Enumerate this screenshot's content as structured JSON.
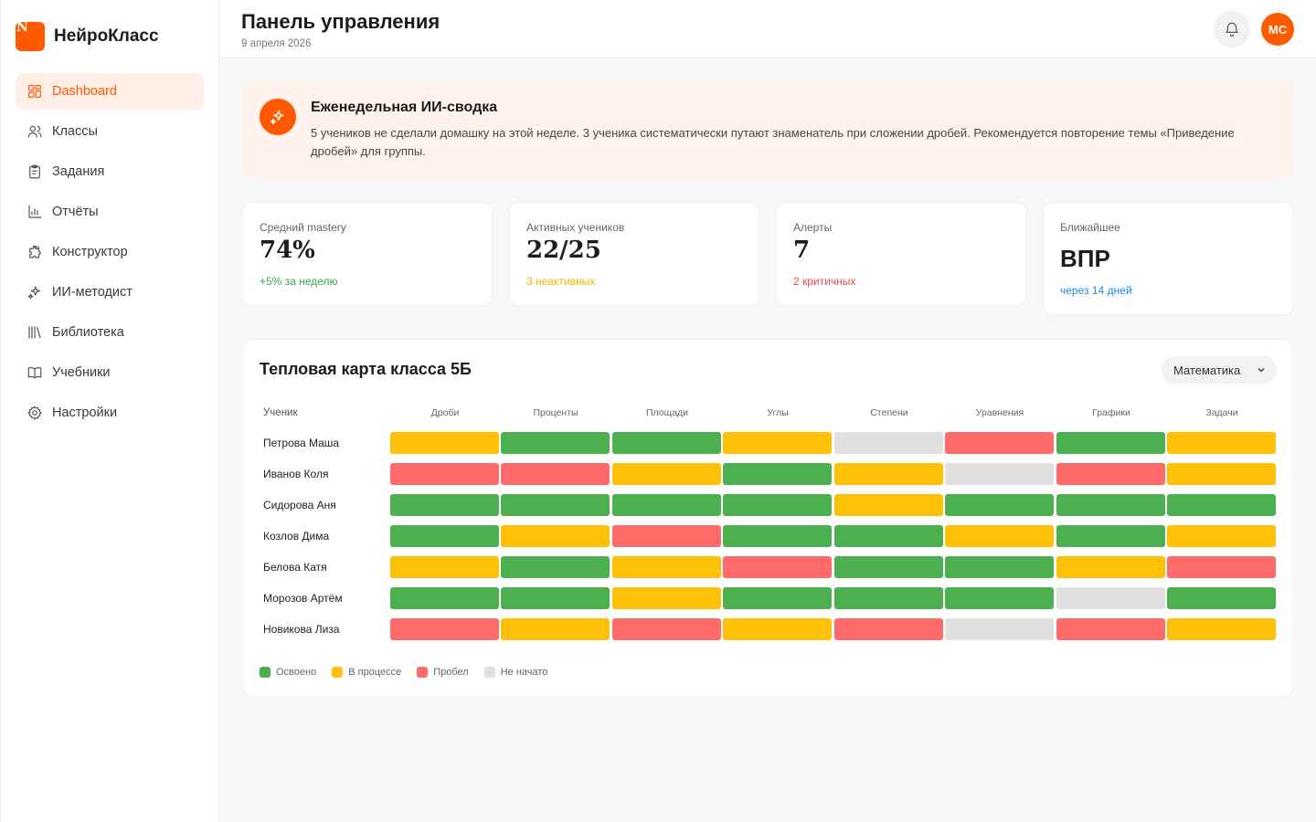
{
  "brand": {
    "name": "НейроКласс",
    "logo_letter": "N"
  },
  "nav": [
    {
      "label": "Dashboard",
      "icon": "dashboard-icon",
      "active": true
    },
    {
      "label": "Классы",
      "icon": "users-icon",
      "active": false
    },
    {
      "label": "Задания",
      "icon": "clipboard-icon",
      "active": false
    },
    {
      "label": "Отчёты",
      "icon": "chart-icon",
      "active": false
    },
    {
      "label": "Конструктор",
      "icon": "puzzle-icon",
      "active": false
    },
    {
      "label": "ИИ-методист",
      "icon": "sparkles-icon",
      "active": false
    },
    {
      "label": "Библиотека",
      "icon": "library-icon",
      "active": false
    },
    {
      "label": "Учебники",
      "icon": "book-icon",
      "active": false
    },
    {
      "label": "Настройки",
      "icon": "gear-icon",
      "active": false
    }
  ],
  "header": {
    "title": "Панель управления",
    "date": "9 апреля 2026",
    "avatar_initials": "МС",
    "notification_icon": "bell-icon"
  },
  "ai_summary": {
    "title": "Еженедельная ИИ-сводка",
    "text": "5 учеников не сделали домашку на этой неделе. 3 ученика систематически путают знаменатель при сложении дробей. Рекомендуется повторение темы «Приведение дробей» для группы.",
    "icon": "sparkles-icon"
  },
  "stats": [
    {
      "label": "Средний mastery",
      "value": "74%",
      "sub": "+5% за неделю",
      "sub_color": "#3aa64a"
    },
    {
      "label": "Активных учеников",
      "value": "22/25",
      "sub": "3 неактивных",
      "sub_color": "#f0b400"
    },
    {
      "label": "Алерты",
      "value": "7",
      "sub": "2 критичных",
      "sub_color": "#ef4b4b"
    },
    {
      "label": "Ближайшее",
      "value": "ВПР",
      "sub": "через 14 дней",
      "sub_color": "#1e88e5"
    }
  ],
  "heatmap": {
    "title": "Тепловая карта класса 5Б",
    "subject": "Математика",
    "student_header": "Ученик",
    "topics": [
      "Дроби",
      "Проценты",
      "Площади",
      "Углы",
      "Степени",
      "Уравнения",
      "Графики",
      "Задачи"
    ],
    "students": [
      {
        "name": "Петрова Маша",
        "statuses": [
          "progress",
          "mastered",
          "mastered",
          "progress",
          "none",
          "gap",
          "mastered",
          "progress"
        ]
      },
      {
        "name": "Иванов Коля",
        "statuses": [
          "gap",
          "gap",
          "progress",
          "mastered",
          "progress",
          "none",
          "gap",
          "progress"
        ]
      },
      {
        "name": "Сидорова Аня",
        "statuses": [
          "mastered",
          "mastered",
          "mastered",
          "mastered",
          "progress",
          "mastered",
          "mastered",
          "mastered"
        ]
      },
      {
        "name": "Козлов Дима",
        "statuses": [
          "mastered",
          "progress",
          "gap",
          "mastered",
          "mastered",
          "progress",
          "mastered",
          "progress"
        ]
      },
      {
        "name": "Белова Катя",
        "statuses": [
          "progress",
          "mastered",
          "progress",
          "gap",
          "mastered",
          "mastered",
          "progress",
          "gap"
        ]
      },
      {
        "name": "Морозов Артём",
        "statuses": [
          "mastered",
          "mastered",
          "progress",
          "mastered",
          "mastered",
          "mastered",
          "none",
          "mastered"
        ]
      },
      {
        "name": "Новикова Лиза",
        "statuses": [
          "gap",
          "progress",
          "gap",
          "progress",
          "gap",
          "none",
          "gap",
          "progress"
        ]
      }
    ],
    "legend": [
      {
        "key": "mastered",
        "label": "Освоено",
        "color": "#4caf50"
      },
      {
        "key": "progress",
        "label": "В процессе",
        "color": "#ffc107"
      },
      {
        "key": "gap",
        "label": "Пробел",
        "color": "#ff6b6b"
      },
      {
        "key": "none",
        "label": "Не начато",
        "color": "#e0e0e0"
      }
    ]
  },
  "colors": {
    "accent": "#ff5a00",
    "accent_soft": "#fff3ec"
  }
}
